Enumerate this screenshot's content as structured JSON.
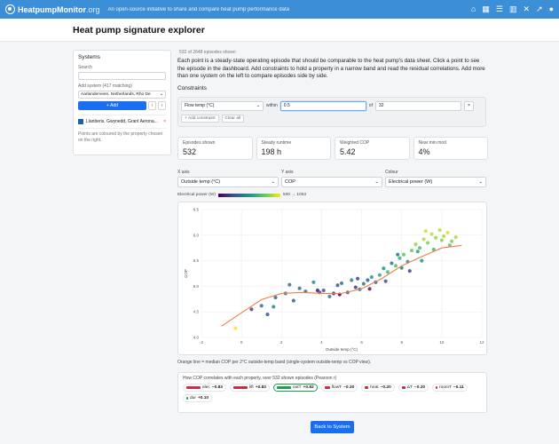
{
  "brand": {
    "name": "HeatpumpMonitor",
    "tld": ".org",
    "tagline": "An open-source initiative to share and compare heat pump performance data"
  },
  "nav_icons": [
    "home-icon",
    "building-icon",
    "list-icon",
    "chart-icon",
    "tools-icon",
    "trend-icon",
    "user-icon"
  ],
  "page_title": "Heat pump signature explorer",
  "sidebar": {
    "title": "Systems",
    "search_label": "Search",
    "search_value": "",
    "add_label": "Add system (417 matching)",
    "add_select": "Aarlanderveen, Netherlands, Rho De",
    "add_button": "+ Add",
    "prev": "‹",
    "next": "›",
    "system_item": "Llanberis, Gwynedd, Grant Aerona...",
    "remove": "×",
    "note": "Points are coloured by the property chosen on the right."
  },
  "episodes_shown": "532 of 2648 episodes shown",
  "intro": "Each point is a steady-state operating episode that should be comparable to the heat pump's data sheet. Click a point to see the episode in the dashboard. Add constraints to hold a property in a narrow band and read the residual correlations. Add more than one system on the left to compare episodes side by side.",
  "constraints": {
    "label": "Constraints",
    "field": "Flow temp (°C)",
    "within": "within",
    "min": "0.5",
    "of": "of",
    "center": "32",
    "remove": "×",
    "add_button": "+ Add constraint",
    "clear_button": "Clear all"
  },
  "stats": [
    {
      "label": "Episodes shown",
      "value": "532"
    },
    {
      "label": "Steady runtime",
      "value": "198 h"
    },
    {
      "label": "Weighted COP",
      "value": "5.42"
    },
    {
      "label": "Near min mod",
      "value": "4%"
    }
  ],
  "axes": {
    "x_label": "X axis",
    "x_value": "Outside temp (°C)",
    "y_label": "Y axis",
    "y_value": "COP",
    "c_label": "Colour",
    "c_value": "Electrical power (W)"
  },
  "colour_scale": {
    "label": "Electrical power (W)",
    "range": "500 → 1053"
  },
  "chart_data": {
    "type": "scatter",
    "xlabel": "Outside temp (°C)",
    "ylabel": "COP",
    "xlim": [
      -2,
      12
    ],
    "ylim": [
      4.0,
      6.5
    ],
    "x_ticks": [
      -2,
      0,
      2,
      4,
      6,
      8,
      10,
      12
    ],
    "y_ticks": [
      4.0,
      4.5,
      5.0,
      5.5,
      6.0,
      6.5
    ],
    "colour_property": "Electrical power (W)",
    "colour_range": [
      500,
      1053
    ],
    "median_line": {
      "x": [
        -1,
        0,
        1,
        2,
        3,
        4,
        5,
        6,
        7,
        8,
        9,
        10,
        11
      ],
      "y": [
        4.22,
        4.48,
        4.74,
        4.86,
        4.88,
        4.86,
        4.86,
        4.95,
        5.15,
        5.4,
        5.58,
        5.75,
        5.8
      ]
    },
    "series": [
      {
        "x": [
          -0.3,
          0.5,
          1.0,
          1.3,
          1.7,
          2.4,
          2.6,
          2.9,
          3.2,
          3.6,
          3.9,
          4.1,
          4.4,
          4.6,
          4.8,
          5.0,
          5.3,
          5.5,
          5.7,
          5.9,
          6.1,
          6.3,
          6.5,
          6.7,
          6.9,
          7.1,
          7.3,
          7.5,
          7.7,
          7.9,
          8.1,
          8.3,
          8.5,
          8.7,
          8.9,
          9.1,
          9.3,
          9.5,
          9.7,
          9.9,
          10.1,
          10.3,
          10.5,
          10.7,
          7.2,
          7.8,
          8.4,
          8.8,
          9.2,
          9.6,
          10.0,
          10.4,
          6.4,
          5.8,
          4.9,
          3.8,
          2.2,
          1.6,
          9.0,
          8.0
        ],
        "y": [
          4.18,
          4.55,
          4.62,
          4.45,
          4.78,
          5.03,
          4.72,
          4.96,
          4.9,
          5.08,
          4.88,
          4.92,
          4.8,
          4.86,
          5.02,
          5.06,
          4.88,
          5.12,
          4.98,
          4.94,
          5.05,
          5.12,
          5.18,
          5.08,
          5.22,
          5.35,
          5.28,
          5.45,
          5.4,
          5.55,
          5.62,
          5.48,
          5.7,
          5.82,
          5.75,
          5.92,
          5.85,
          6.02,
          5.95,
          6.1,
          5.98,
          6.05,
          5.88,
          5.96,
          5.1,
          5.62,
          5.3,
          5.68,
          6.08,
          5.72,
          5.9,
          5.8,
          4.95,
          5.15,
          4.84,
          4.92,
          4.86,
          4.6,
          5.5,
          5.36
        ],
        "c": [
          1053,
          620,
          700,
          640,
          680,
          720,
          660,
          700,
          690,
          760,
          610,
          650,
          720,
          560,
          640,
          700,
          660,
          740,
          600,
          680,
          720,
          660,
          780,
          640,
          820,
          760,
          860,
          720,
          880,
          840,
          900,
          760,
          920,
          960,
          880,
          980,
          940,
          1000,
          960,
          1000,
          980,
          1020,
          940,
          980,
          640,
          700,
          620,
          800,
          1010,
          860,
          950,
          900,
          560,
          620,
          500,
          540,
          700,
          760,
          780,
          720
        ]
      }
    ]
  },
  "caption": "Orange line = median COP per 2°C outside-temp band (single-system outside-temp vs COP view).",
  "correlations": {
    "title": "How COP correlates with each property, over 532 shown episodes (Pearson r)",
    "items": [
      {
        "name": "elec",
        "value": "−0.83",
        "color": "#d6283a",
        "width": 16,
        "highlight": false
      },
      {
        "name": "lift",
        "value": "+0.83",
        "color": "#d6283a",
        "width": 16,
        "highlight": false
      },
      {
        "name": "outT",
        "value": "+0.82",
        "color": "#1f9e50",
        "width": 16,
        "highlight": true
      },
      {
        "name": "flowT",
        "value": "−0.30",
        "color": "#d6283a",
        "width": 6,
        "highlight": false
      },
      {
        "name": "heat",
        "value": "−0.20",
        "color": "#d6283a",
        "width": 4,
        "highlight": false
      },
      {
        "name": "ΔT",
        "value": "−0.20",
        "color": "#d6283a",
        "width": 4,
        "highlight": false
      },
      {
        "name": "roomT",
        "value": "−0.11",
        "color": "#d6283a",
        "width": 2,
        "highlight": false
      },
      {
        "name": "dur",
        "value": "+0.10",
        "color": "#1f9e50",
        "width": 2,
        "highlight": false
      }
    ]
  },
  "back_button": "Back to System"
}
